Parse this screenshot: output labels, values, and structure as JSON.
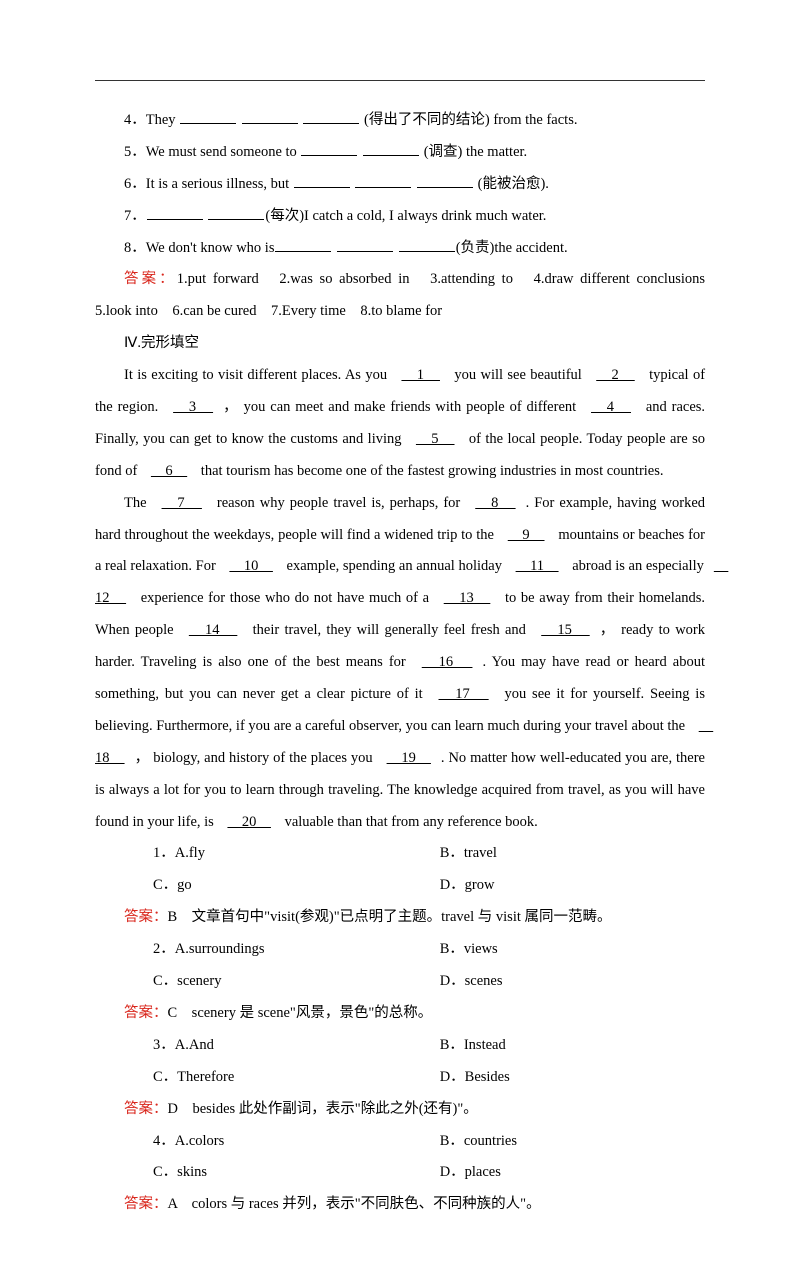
{
  "colors": {
    "answer": "#d9261c",
    "text": "#000000",
    "bg": "#ffffff",
    "rule": "#333333"
  },
  "fill_in": {
    "q4": {
      "num": "4．",
      "pre": "They ",
      "post": " (得出了不同的结论) from the facts."
    },
    "q5": {
      "num": "5．",
      "pre": "We must send someone to ",
      "post": " (调查) the matter."
    },
    "q6": {
      "num": "6．",
      "pre": "It is a serious illness, but ",
      "post": " (能被治愈)."
    },
    "q7": {
      "num": "7．",
      "pre": "",
      "mid": "(每次)I catch a cold, I always drink much water.",
      "post": ""
    },
    "q8": {
      "num": "8．",
      "pre": "We don't know who is",
      "post": "(负责)the accident."
    }
  },
  "fill_answer": {
    "label": "答案：",
    "text": "1.put forward　2.was so absorbed in　3.attending to　4.draw different conclusions　5.look into　6.can be cured　7.Every time　8.to blame for"
  },
  "section4": "Ⅳ.完形填空",
  "passage": {
    "p1a": "It is exciting to visit different places. As you ",
    "b1": "　1　",
    "p1b": " you will see beautiful ",
    "b2": "　2　",
    "p1c": " typical of the region. ",
    "b3": "　3　",
    "p1d": "， you can meet and make friends with people of different ",
    "b4": "　4　",
    "p1e": " and races. Finally, you can get to know the customs and living ",
    "b5": "　5　",
    "p1f": " of the local people. Today people are so fond of ",
    "b6": "　6　",
    "p1g": " that tourism has become one of the fastest growing industries in most countries.",
    "p2a": "The ",
    "b7": "　7　",
    "p2b": " reason why people travel is, perhaps, for ",
    "b8": "　8　",
    "p2c": ". For example, having worked hard throughout the weekdays, people will find a widened trip to the ",
    "b9": "　9　",
    "p2d": " mountains or beaches for a real relaxation. For ",
    "b10": "　10　",
    "p2e": " example, spending an annual holiday ",
    "b11": "　11　",
    "p2f": " abroad is an especially ",
    "b12": "　12　",
    "p2g": " experience for those who do not have much of a ",
    "b13": "　13　",
    "p2h": " to be away from their homelands. When people ",
    "b14": "　14　",
    "p2i": " their travel, they will generally feel fresh and ",
    "b15": "　15　",
    "p2j": "， ready to work harder. Traveling is also one of the best means for ",
    "b16": "　16　",
    "p2k": ". You may have read or heard about something, but you can never get a clear picture of it ",
    "b17": "　17　",
    "p2l": " you see it for yourself. Seeing is believing. Furthermore, if you are a careful observer, you can learn much during your travel about the ",
    "b18": "　18　",
    "p2m": "， biology, and history of the places you ",
    "b19": "　19　",
    "p2n": ". No matter how well-educated you are, there is always a lot for you to learn through traveling. The knowledge acquired from travel, as you will have found in your life, is ",
    "b20": "　20　",
    "p2o": " valuable than that from any reference book."
  },
  "mcq": [
    {
      "num": "1．",
      "A": "A.fly",
      "B": "B．travel",
      "C": "C．go",
      "D": "D．grow",
      "ans_label": "答案：",
      "ans_text": "B　文章首句中\"visit(参观)\"已点明了主题。travel 与 visit 属同一范畴。"
    },
    {
      "num": "2．",
      "A": "A.surroundings",
      "B": "B．views",
      "C": "C．scenery",
      "D": "D．scenes",
      "ans_label": "答案：",
      "ans_text": "C　scenery 是 scene\"风景，景色\"的总称。"
    },
    {
      "num": "3．",
      "A": "A.And",
      "B": "B．Instead",
      "C": "C．Therefore",
      "D": "D．Besides",
      "ans_label": "答案：",
      "ans_text": "D　besides 此处作副词，表示\"除此之外(还有)\"。"
    },
    {
      "num": "4．",
      "A": "A.colors",
      "B": "B．countries",
      "C": "C．skins",
      "D": "D．places",
      "ans_label": "答案：",
      "ans_text": "A　colors 与 races 并列，表示\"不同肤色、不同种族的人\"。"
    }
  ]
}
